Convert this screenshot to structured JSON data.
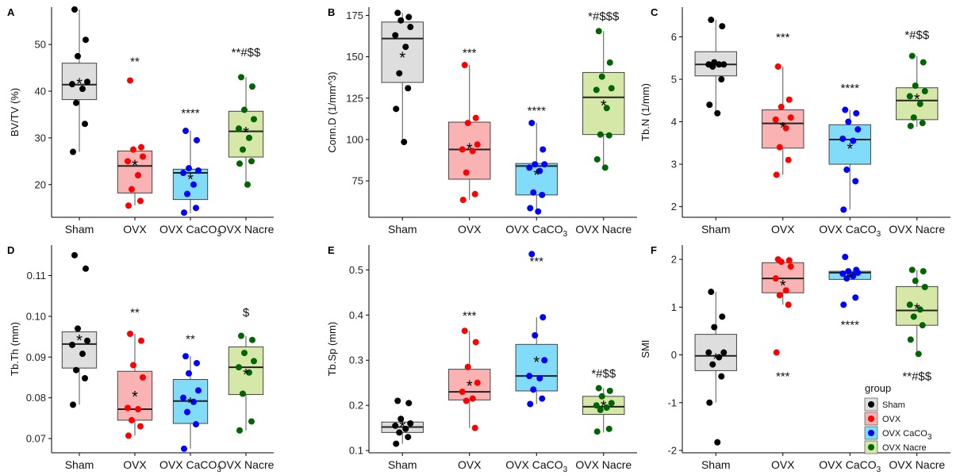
{
  "groups": [
    "Sham",
    "OVX",
    "OVX CaCO3",
    "OVX Nacre"
  ],
  "group_colors": {
    "Sham": {
      "fill": "#dedede",
      "point": "#000000"
    },
    "OVX": {
      "fill": "#f9b3b3",
      "point": "#ff0000"
    },
    "OVX CaCO3": {
      "fill": "#80dcf8",
      "point": "#0000ff"
    },
    "OVX Nacre": {
      "fill": "#d6e8a8",
      "point": "#006400"
    }
  },
  "legend": {
    "title": "group",
    "entries": [
      "Sham",
      "OVX",
      "OVX CaCO3",
      "OVX Nacre"
    ]
  },
  "chart_data": [
    {
      "panel": "A",
      "type": "box",
      "ylabel": "BV/TV (%)",
      "ylim": [
        13,
        58
      ],
      "yticks": [
        "20",
        "30",
        "40",
        "50"
      ],
      "categories": [
        "Sham",
        "OVX",
        "OVX CaCO3",
        "OVX Nacre"
      ],
      "series": [
        {
          "q1": 38.2,
          "median": 41.4,
          "q3": 46.0,
          "whisker_low": 27.0,
          "whisker_high": 57.5,
          "mean": 41.8,
          "annotation": "",
          "points": [
            57.5,
            51.0,
            47.5,
            42.0,
            41.5,
            40.5,
            37.5,
            33.0,
            27.0
          ]
        },
        {
          "q1": 18.2,
          "median": 24.0,
          "q3": 27.2,
          "whisker_low": 15.5,
          "whisker_high": 28.0,
          "mean": 24.3,
          "annotation": "**",
          "points": [
            42.3,
            28.0,
            27.5,
            26.0,
            25.0,
            22.0,
            19.0,
            16.5,
            15.5
          ]
        },
        {
          "q1": 16.8,
          "median": 22.5,
          "q3": 23.3,
          "whisker_low": 13.8,
          "whisker_high": 31.5,
          "mean": 21.3,
          "annotation": "****",
          "points": [
            31.5,
            29.5,
            23.5,
            23.0,
            22.5,
            20.0,
            18.0,
            15.0,
            14.0
          ]
        },
        {
          "q1": 25.9,
          "median": 31.4,
          "q3": 35.7,
          "whisker_low": 20.0,
          "whisker_high": 43.0,
          "mean": 31.3,
          "annotation": "**#$$",
          "points": [
            43.0,
            41.0,
            36.0,
            34.0,
            32.0,
            30.0,
            27.5,
            25.0,
            24.5,
            20.0
          ]
        }
      ]
    },
    {
      "panel": "B",
      "type": "box",
      "ylabel": "Conn.D (1/mm^3)",
      "ylim": [
        53,
        180
      ],
      "yticks": [
        "75",
        "100",
        "125",
        "150",
        "175"
      ],
      "categories": [
        "Sham",
        "OVX",
        "OVX CaCO3",
        "OVX Nacre"
      ],
      "series": [
        {
          "q1": 134.5,
          "median": 161.0,
          "q3": 171.0,
          "whisker_low": 98.5,
          "whisker_high": 176.5,
          "mean": 150.0,
          "annotation": "",
          "points": [
            176.5,
            174.0,
            172.0,
            168.0,
            163.0,
            156.0,
            140.0,
            131.0,
            118.5,
            98.5
          ]
        },
        {
          "q1": 76.0,
          "median": 94.0,
          "q3": 110.5,
          "whisker_low": 63.5,
          "whisker_high": 145.0,
          "mean": 95.0,
          "annotation": "***",
          "points": [
            145.0,
            113.0,
            110.0,
            97.0,
            94.0,
            93.0,
            80.0,
            67.0,
            63.5
          ]
        },
        {
          "q1": 66.5,
          "median": 84.0,
          "q3": 85.5,
          "whisker_low": 56.5,
          "whisker_high": 110.0,
          "mean": 79.0,
          "annotation": "****",
          "points": [
            110.0,
            94.0,
            85.0,
            85.0,
            83.0,
            81.0,
            68.0,
            66.5,
            58.5,
            56.5
          ]
        },
        {
          "q1": 103.0,
          "median": 125.5,
          "q3": 140.5,
          "whisker_low": 83.0,
          "whisker_high": 165.5,
          "mean": 121.0,
          "annotation": "*#$$$",
          "points": [
            165.5,
            146.5,
            138.0,
            131.0,
            130.0,
            119.0,
            103.0,
            102.5,
            88.0,
            83.0
          ]
        }
      ]
    },
    {
      "panel": "C",
      "type": "box",
      "ylabel": "Tb.N (1/mm)",
      "ylim": [
        1.75,
        6.7
      ],
      "yticks": [
        "2",
        "3",
        "4",
        "5",
        "6"
      ],
      "categories": [
        "Sham",
        "OVX",
        "OVX CaCO3",
        "OVX Nacre"
      ],
      "series": [
        {
          "q1": 5.08,
          "median": 5.35,
          "q3": 5.65,
          "whisker_low": 4.2,
          "whisker_high": 6.4,
          "mean": 5.33,
          "annotation": "",
          "points": [
            6.4,
            6.25,
            5.4,
            5.35,
            5.35,
            5.35,
            5.3,
            5.0,
            4.4,
            4.2
          ]
        },
        {
          "q1": 3.38,
          "median": 3.96,
          "q3": 4.28,
          "whisker_low": 2.75,
          "whisker_high": 5.3,
          "mean": 3.88,
          "annotation": "***",
          "points": [
            5.3,
            4.52,
            4.35,
            4.1,
            4.05,
            3.85,
            3.4,
            3.1,
            2.75
          ]
        },
        {
          "q1": 3.0,
          "median": 3.58,
          "q3": 3.93,
          "whisker_low": 1.93,
          "whisker_high": 4.28,
          "mean": 3.38,
          "annotation": "****",
          "points": [
            4.28,
            4.2,
            4.0,
            3.82,
            3.6,
            3.55,
            2.87,
            2.6,
            1.93
          ]
        },
        {
          "q1": 4.05,
          "median": 4.5,
          "q3": 4.8,
          "whisker_low": 3.88,
          "whisker_high": 5.55,
          "mean": 4.55,
          "annotation": "*#$$",
          "points": [
            5.55,
            5.4,
            4.85,
            4.72,
            4.6,
            4.42,
            4.1,
            3.97,
            3.9
          ]
        }
      ]
    },
    {
      "panel": "D",
      "type": "box",
      "ylabel": "Tb.Th (mm)",
      "ylim": [
        0.0665,
        0.1175
      ],
      "yticks": [
        "0.07",
        "0.08",
        "0.09",
        "0.10",
        "0.11"
      ],
      "categories": [
        "Sham",
        "OVX",
        "OVX CaCO3",
        "OVX Nacre"
      ],
      "series": [
        {
          "q1": 0.0873,
          "median": 0.0932,
          "q3": 0.0962,
          "whisker_low": 0.0783,
          "whisker_high": 0.0968,
          "mean": 0.0943,
          "annotation": "",
          "points": [
            0.115,
            0.1117,
            0.097,
            0.094,
            0.093,
            0.0908,
            0.0868,
            0.0848,
            0.0783
          ]
        },
        {
          "q1": 0.0745,
          "median": 0.0772,
          "q3": 0.0865,
          "whisker_low": 0.0707,
          "whisker_high": 0.0957,
          "mean": 0.0805,
          "annotation": "**",
          "points": [
            0.0957,
            0.094,
            0.088,
            0.085,
            0.0775,
            0.0772,
            0.0745,
            0.073,
            0.0707
          ]
        },
        {
          "q1": 0.0737,
          "median": 0.0792,
          "q3": 0.0845,
          "whisker_low": 0.0675,
          "whisker_high": 0.0902,
          "mean": 0.079,
          "annotation": "**",
          "points": [
            0.0902,
            0.0885,
            0.086,
            0.0818,
            0.08,
            0.079,
            0.0765,
            0.0735,
            0.0675
          ]
        },
        {
          "q1": 0.0808,
          "median": 0.0875,
          "q3": 0.0925,
          "whisker_low": 0.072,
          "whisker_high": 0.0952,
          "mean": 0.086,
          "annotation": "$",
          "points": [
            0.0952,
            0.0942,
            0.091,
            0.089,
            0.0875,
            0.0862,
            0.081,
            0.0742,
            0.072
          ]
        }
      ]
    },
    {
      "panel": "E",
      "type": "box",
      "ylabel": "Tb.Sp (mm)",
      "ylim": [
        0.095,
        0.555
      ],
      "yticks": [
        "0.1",
        "0.2",
        "0.3",
        "0.4",
        "0.5"
      ],
      "categories": [
        "Sham",
        "OVX",
        "OVX CaCO3",
        "OVX Nacre"
      ],
      "series": [
        {
          "q1": 0.14,
          "median": 0.152,
          "q3": 0.163,
          "whisker_low": 0.115,
          "whisker_high": 0.17,
          "mean": 0.155,
          "annotation": "",
          "points": [
            0.21,
            0.205,
            0.17,
            0.16,
            0.155,
            0.148,
            0.14,
            0.13,
            0.115
          ]
        },
        {
          "q1": 0.212,
          "median": 0.23,
          "q3": 0.28,
          "whisker_low": 0.15,
          "whisker_high": 0.365,
          "mean": 0.245,
          "annotation": "***",
          "points": [
            0.365,
            0.34,
            0.285,
            0.25,
            0.23,
            0.215,
            0.21,
            0.15
          ]
        },
        {
          "q1": 0.232,
          "median": 0.265,
          "q3": 0.335,
          "whisker_low": 0.203,
          "whisker_high": 0.395,
          "mean": 0.298,
          "annotation": "***",
          "points": [
            0.535,
            0.395,
            0.355,
            0.3,
            0.265,
            0.26,
            0.235,
            0.215,
            0.203
          ]
        },
        {
          "q1": 0.18,
          "median": 0.197,
          "q3": 0.22,
          "whisker_low": 0.14,
          "whisker_high": 0.238,
          "mean": 0.2,
          "annotation": "*#$$",
          "points": [
            0.238,
            0.232,
            0.22,
            0.205,
            0.2,
            0.195,
            0.19,
            0.148,
            0.142
          ]
        }
      ]
    },
    {
      "panel": "F",
      "type": "box",
      "ylabel": "SMI",
      "ylim": [
        -2.05,
        2.3
      ],
      "yticks": [
        "-2",
        "-1",
        "0",
        "1",
        "2"
      ],
      "categories": [
        "Sham",
        "OVX",
        "OVX CaCO3",
        "OVX Nacre"
      ],
      "series": [
        {
          "q1": -0.33,
          "median": -0.02,
          "q3": 0.43,
          "whisker_low": -1.0,
          "whisker_high": 1.32,
          "mean": -0.07,
          "annotation": "",
          "points": [
            1.32,
            0.8,
            0.58,
            0.05,
            0.05,
            -0.05,
            -0.2,
            -0.45,
            -1.0,
            -1.83
          ]
        },
        {
          "q1": 1.3,
          "median": 1.6,
          "q3": 1.93,
          "whisker_low": 1.05,
          "whisker_high": 2.0,
          "mean": 1.47,
          "annotation": "***",
          "points": [
            2.0,
            1.98,
            1.95,
            1.85,
            1.6,
            1.35,
            1.25,
            1.05,
            0.05
          ]
        },
        {
          "q1": 1.58,
          "median": 1.72,
          "q3": 1.75,
          "whisker_low": 1.58,
          "whisker_high": 1.78,
          "mean": 1.62,
          "annotation": "****",
          "points": [
            2.05,
            1.78,
            1.75,
            1.72,
            1.7,
            1.65,
            1.6,
            1.2,
            1.05
          ]
        },
        {
          "q1": 0.62,
          "median": 0.93,
          "q3": 1.43,
          "whisker_low": 0.02,
          "whisker_high": 1.78,
          "mean": 0.98,
          "annotation": "**#$$",
          "points": [
            1.78,
            1.75,
            1.55,
            1.42,
            1.05,
            0.95,
            0.8,
            0.62,
            0.32,
            0.02
          ]
        }
      ]
    }
  ]
}
